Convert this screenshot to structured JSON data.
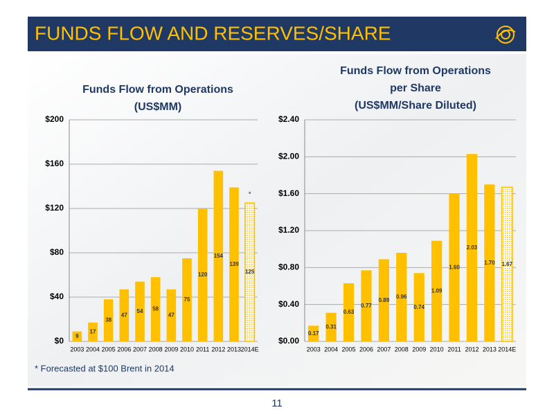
{
  "header": {
    "title": "FUNDS FLOW AND RESERVES/SHARE"
  },
  "chart_data": [
    {
      "type": "bar",
      "title": [
        "Funds Flow from Operations",
        "(US$MM)"
      ],
      "categories": [
        "2003",
        "2004",
        "2005",
        "2006",
        "2007",
        "2008",
        "2009",
        "2010",
        "2011",
        "2012",
        "2013",
        "2014E"
      ],
      "values": [
        9,
        17,
        38,
        47,
        54,
        58,
        47,
        75,
        120,
        154,
        139,
        125
      ],
      "color": "#ffc000",
      "hatched_last": true,
      "annotation": {
        "text": "*",
        "category": "2014E"
      },
      "ylim": [
        0,
        200
      ],
      "yticks": [
        {
          "value": 0,
          "label": "$0"
        },
        {
          "value": 40,
          "label": "$40"
        },
        {
          "value": 80,
          "label": "$80"
        },
        {
          "value": 120,
          "label": "$120"
        },
        {
          "value": 160,
          "label": "$160"
        },
        {
          "value": 200,
          "label": "$200"
        }
      ],
      "grid": true
    },
    {
      "type": "bar",
      "title": [
        "Funds Flow from Operations",
        "per Share",
        "(US$MM/Share Diluted)"
      ],
      "categories": [
        "2003",
        "2004",
        "2005",
        "2006",
        "2007",
        "2008",
        "2009",
        "2010",
        "2011",
        "2012",
        "2013",
        "2014E"
      ],
      "values": [
        0.17,
        0.31,
        0.63,
        0.77,
        0.89,
        0.96,
        0.74,
        1.09,
        1.6,
        2.03,
        1.7,
        1.67
      ],
      "value_labels": [
        "0.17",
        "0.31",
        "0.63",
        "0.77",
        "0.89",
        "0.96",
        "0.74",
        "1.09",
        "1.60",
        "2.03",
        "1.70",
        "1.67"
      ],
      "color": "#ffc000",
      "hatched_last": true,
      "ylim": [
        0,
        2.4
      ],
      "yticks": [
        {
          "value": 0,
          "label": "$0.00"
        },
        {
          "value": 0.4,
          "label": "$0.40"
        },
        {
          "value": 0.8,
          "label": "$0.80"
        },
        {
          "value": 1.2,
          "label": "$1.20"
        },
        {
          "value": 1.6,
          "label": "$1.60"
        },
        {
          "value": 2.0,
          "label": "$2.00"
        },
        {
          "value": 2.4,
          "label": "$2.40"
        }
      ],
      "grid": true
    }
  ],
  "footnote": "* Forecasted at $100 Brent in 2014",
  "page_number": "11"
}
